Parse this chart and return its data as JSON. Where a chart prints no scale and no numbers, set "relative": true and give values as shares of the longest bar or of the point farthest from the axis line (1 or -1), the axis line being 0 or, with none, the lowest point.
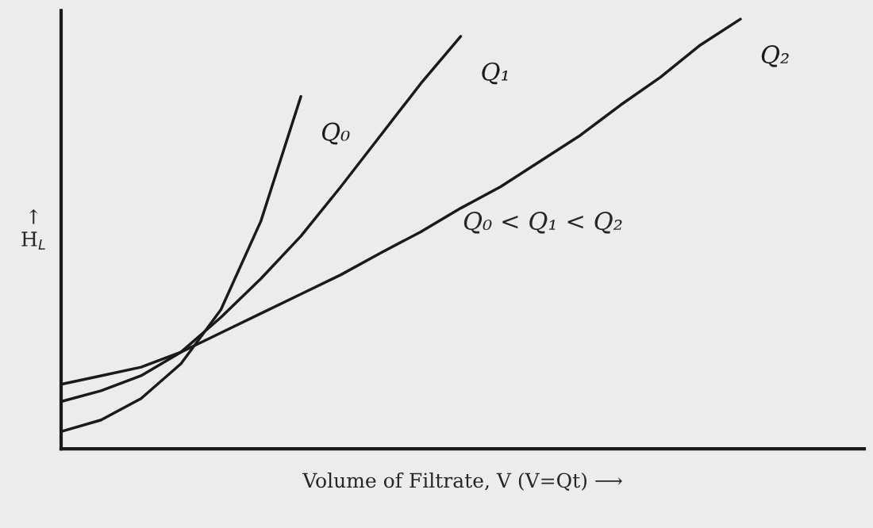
{
  "chart_data": {
    "type": "line",
    "relative": true,
    "xlabel": "Volume of Filtrate, V (V=Qt) ⟶",
    "ylabel": "↑\nH$_{L}$",
    "categories": [
      null,
      null,
      null,
      null,
      null,
      null,
      null,
      null,
      null,
      null,
      null,
      null,
      null,
      null,
      null,
      null,
      null,
      null,
      null,
      null,
      null
    ],
    "series": [
      {
        "name": "Q₀",
        "color": "#1a1a1a",
        "values": [
          0.04,
          0.067,
          0.117,
          0.198,
          0.324,
          0.53,
          0.82,
          null,
          null,
          null,
          null,
          null,
          null,
          null,
          null,
          null,
          null,
          null,
          null,
          null,
          null
        ]
      },
      {
        "name": "Q₁",
        "color": "#1a1a1a",
        "values": [
          0.11,
          0.135,
          0.17,
          0.225,
          0.306,
          0.396,
          0.495,
          0.61,
          0.73,
          0.85,
          0.96,
          null,
          null,
          null,
          null,
          null,
          null,
          null,
          null,
          null,
          null
        ]
      },
      {
        "name": "Q₂",
        "color": "#1a1a1a",
        "values": [
          0.15,
          0.17,
          0.19,
          0.225,
          0.27,
          0.315,
          0.36,
          0.405,
          0.456,
          0.505,
          0.56,
          0.61,
          0.67,
          0.73,
          0.8,
          0.865,
          0.94,
          1.0,
          null,
          null,
          null
        ]
      }
    ],
    "annotations": [
      "Q₀ < Q₁ < Q₂"
    ],
    "grid": false,
    "legend": false,
    "line_style": "solid",
    "marker": "none"
  }
}
